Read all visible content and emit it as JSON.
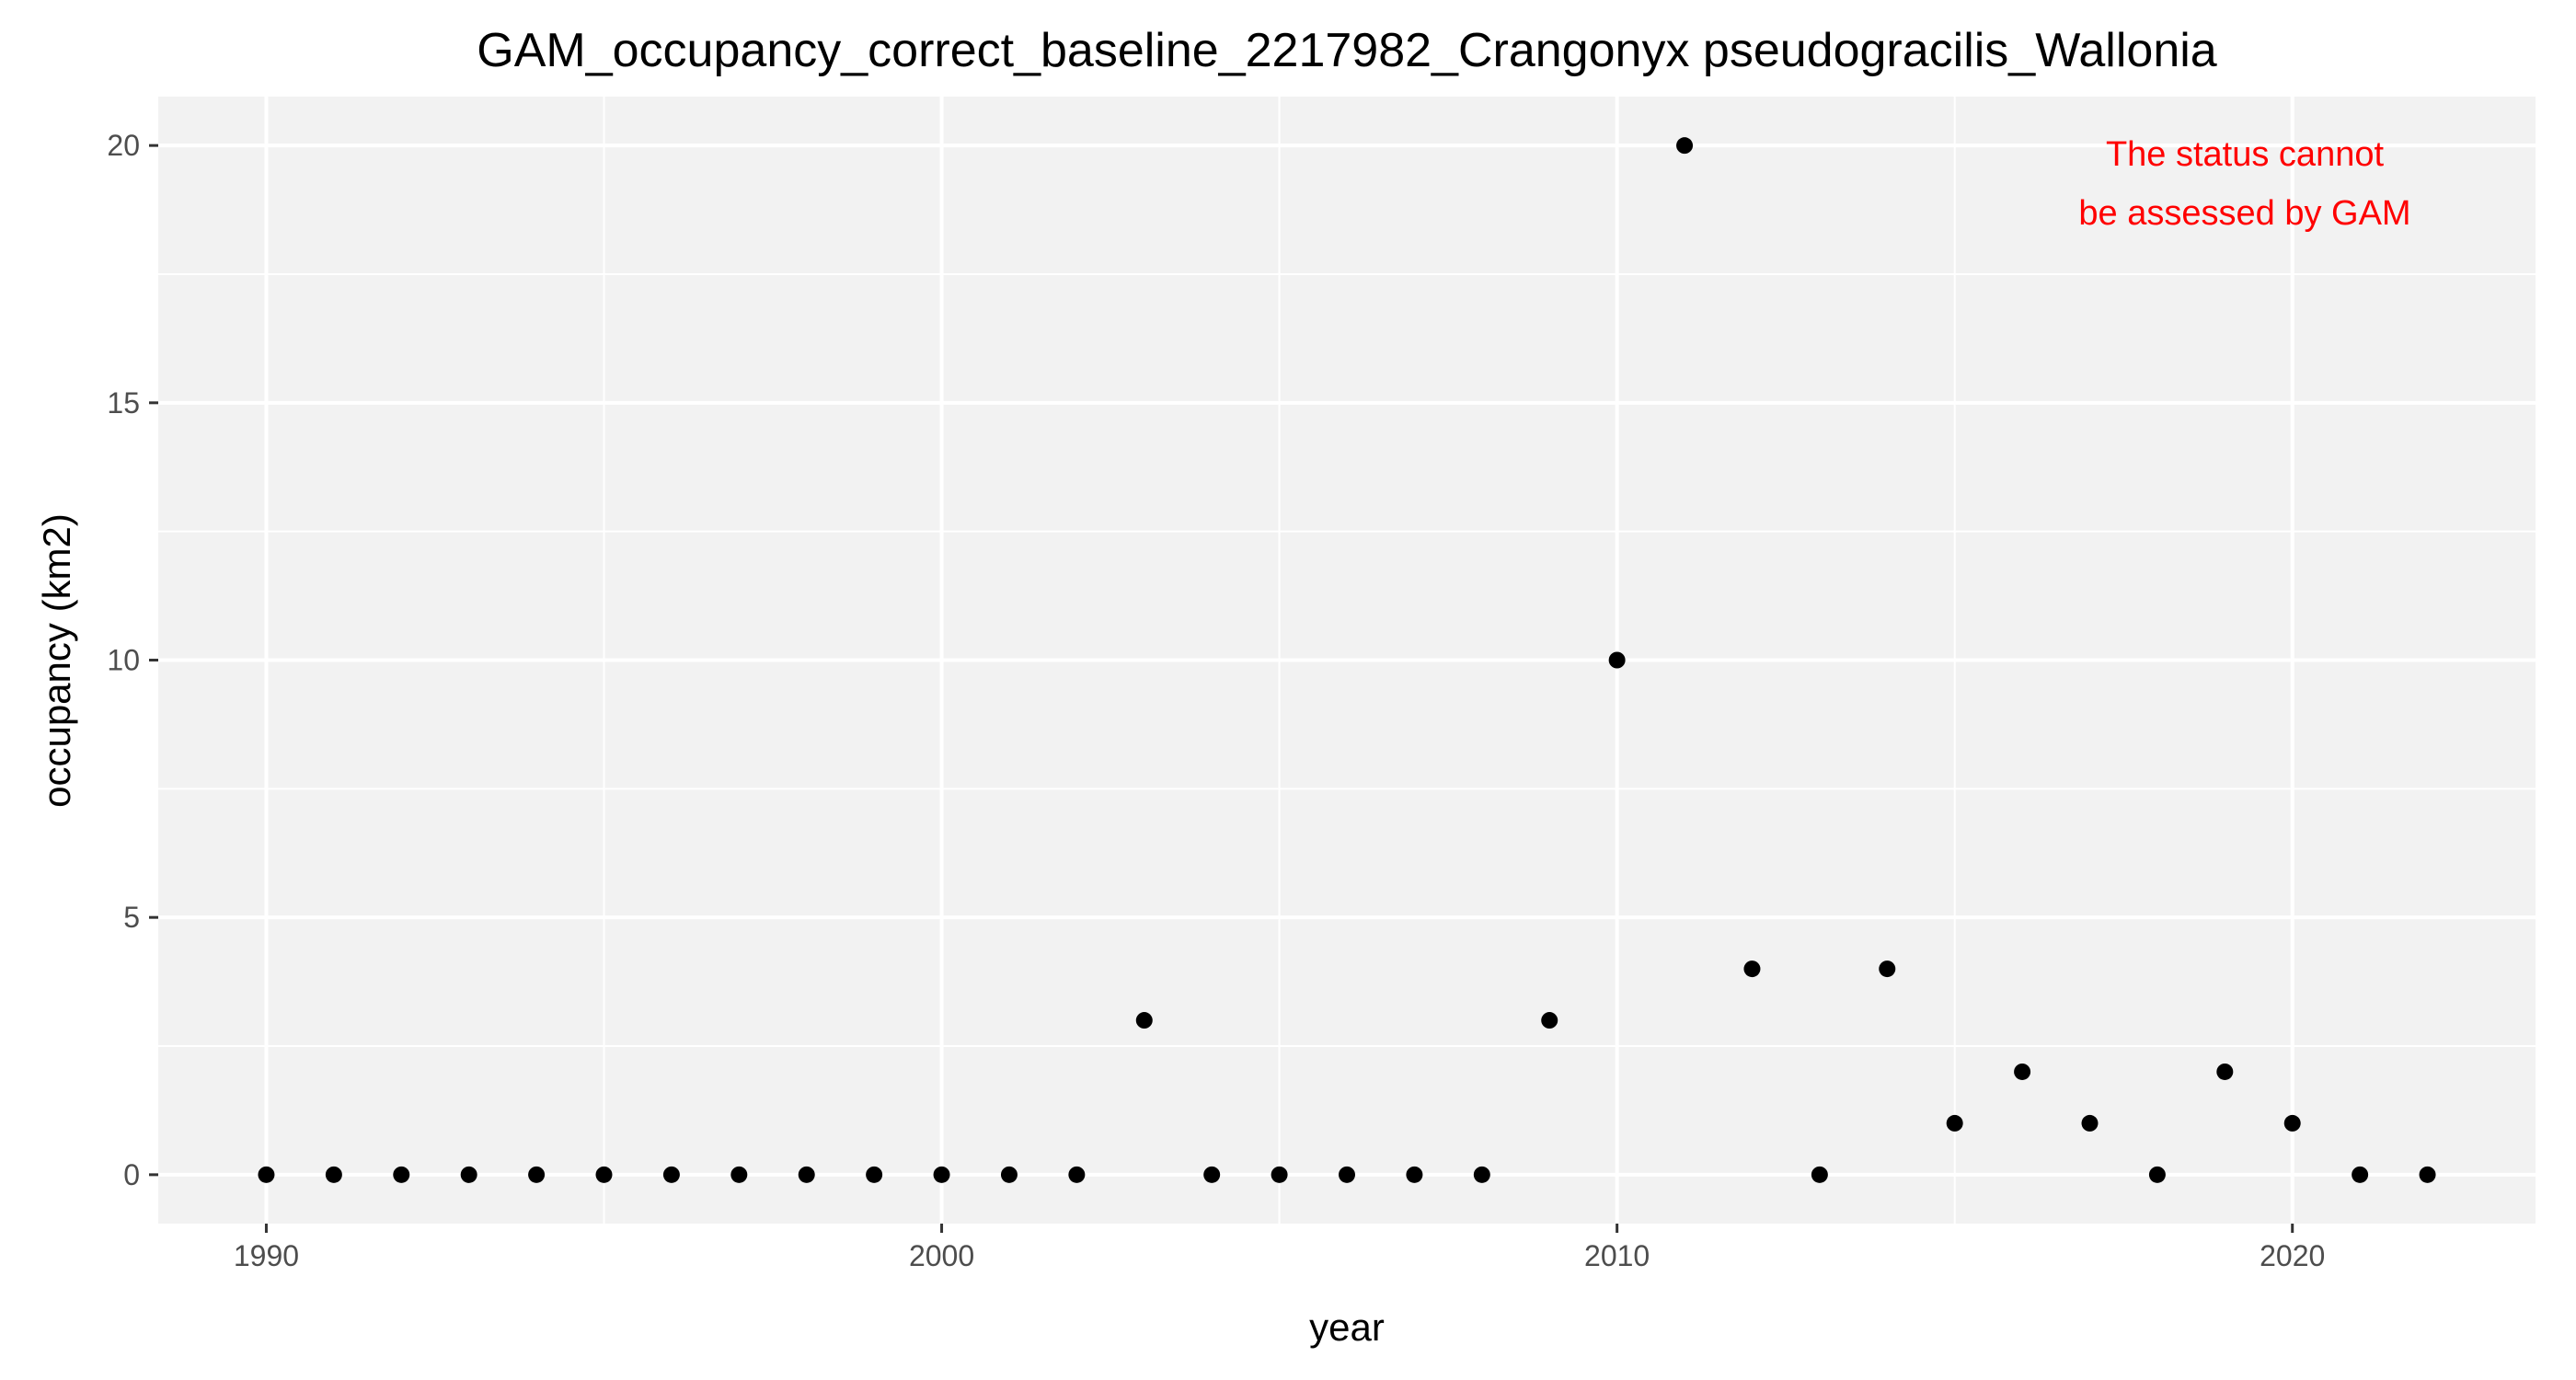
{
  "chart_data": {
    "type": "scatter",
    "title": "GAM_occupancy_correct_baseline_2217982_Crangonyx pseudogracilis_Wallonia",
    "xlabel": "year",
    "ylabel": "occupancy (km2)",
    "xlim": [
      1988.4,
      2023.6
    ],
    "ylim": [
      -0.95,
      20.95
    ],
    "x_ticks": [
      1990,
      2000,
      2010,
      2020
    ],
    "y_ticks": [
      0,
      5,
      10,
      15,
      20
    ],
    "grid": true,
    "panel_color": "#f2f2f2",
    "point_color": "#000000",
    "annotation": {
      "lines": [
        "The status cannot",
        "be assessed by GAM"
      ],
      "color": "#ff0000",
      "placement": "top-right"
    },
    "points": [
      {
        "x": 1990,
        "y": 0
      },
      {
        "x": 1991,
        "y": 0
      },
      {
        "x": 1992,
        "y": 0
      },
      {
        "x": 1993,
        "y": 0
      },
      {
        "x": 1994,
        "y": 0
      },
      {
        "x": 1995,
        "y": 0
      },
      {
        "x": 1996,
        "y": 0
      },
      {
        "x": 1997,
        "y": 0
      },
      {
        "x": 1998,
        "y": 0
      },
      {
        "x": 1999,
        "y": 0
      },
      {
        "x": 2000,
        "y": 0
      },
      {
        "x": 2001,
        "y": 0
      },
      {
        "x": 2002,
        "y": 0
      },
      {
        "x": 2003,
        "y": 3
      },
      {
        "x": 2004,
        "y": 0
      },
      {
        "x": 2005,
        "y": 0
      },
      {
        "x": 2006,
        "y": 0
      },
      {
        "x": 2007,
        "y": 0
      },
      {
        "x": 2008,
        "y": 0
      },
      {
        "x": 2009,
        "y": 3
      },
      {
        "x": 2010,
        "y": 10
      },
      {
        "x": 2011,
        "y": 20
      },
      {
        "x": 2012,
        "y": 4
      },
      {
        "x": 2013,
        "y": 0
      },
      {
        "x": 2014,
        "y": 4
      },
      {
        "x": 2015,
        "y": 1
      },
      {
        "x": 2016,
        "y": 2
      },
      {
        "x": 2017,
        "y": 1
      },
      {
        "x": 2018,
        "y": 0
      },
      {
        "x": 2019,
        "y": 2
      },
      {
        "x": 2020,
        "y": 1
      },
      {
        "x": 2021,
        "y": 0
      },
      {
        "x": 2022,
        "y": 0
      }
    ]
  }
}
